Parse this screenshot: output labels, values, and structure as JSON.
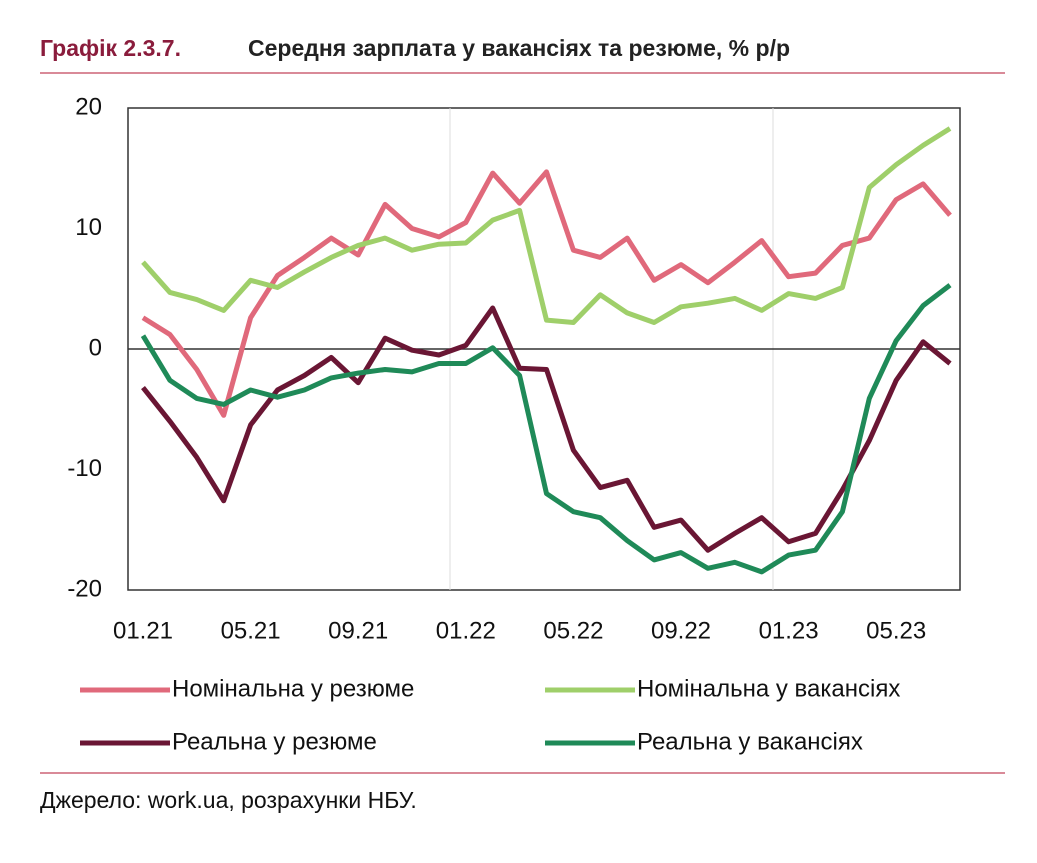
{
  "chart_data": {
    "type": "line",
    "figure_label": "Графік 2.3.7.",
    "title": "Середня зарплата у вакансіях та резюме, % р/р",
    "source": "Джерело: work.ua, розрахунки НБУ.",
    "categories": [
      "01.21",
      null,
      null,
      null,
      "05.21",
      null,
      null,
      null,
      "09.21",
      null,
      null,
      null,
      "01.22",
      null,
      null,
      null,
      "05.22",
      null,
      null,
      null,
      "09.22",
      null,
      null,
      null,
      "01.23",
      null,
      null,
      null,
      "05.23",
      null,
      null
    ],
    "series": [
      {
        "name": "Номінальна у резюме",
        "color": "#e0697b",
        "values": [
          2.6,
          1.2,
          -1.7,
          -5.5,
          2.6,
          6.1,
          7.6,
          9.2,
          7.8,
          12.0,
          10.0,
          9.3,
          10.5,
          14.6,
          12.1,
          14.7,
          8.2,
          7.6,
          9.2,
          5.7,
          7.0,
          5.5,
          7.2,
          9.0,
          6.0,
          6.3,
          8.6,
          9.2,
          12.4,
          13.7,
          11.1
        ]
      },
      {
        "name": "Номінальна у вакансіях",
        "color": "#9fcf6a",
        "values": [
          7.2,
          4.7,
          4.1,
          3.2,
          5.7,
          5.1,
          6.4,
          7.6,
          8.6,
          9.2,
          8.2,
          8.7,
          8.8,
          10.7,
          11.5,
          2.4,
          2.2,
          4.5,
          3.0,
          2.2,
          3.5,
          3.8,
          4.2,
          3.2,
          4.6,
          4.2,
          5.1,
          13.4,
          15.3,
          16.9,
          18.3
        ]
      },
      {
        "name": "Реальна у резюме",
        "color": "#6a1634",
        "values": [
          -3.2,
          -6.0,
          -9.0,
          -12.6,
          -6.3,
          -3.4,
          -2.2,
          -0.7,
          -2.8,
          0.9,
          -0.1,
          -0.5,
          0.3,
          3.4,
          -1.6,
          -1.7,
          -8.4,
          -11.5,
          -10.9,
          -14.8,
          -14.2,
          -16.7,
          -15.3,
          -14.0,
          -16.0,
          -15.3,
          -11.7,
          -7.6,
          -2.6,
          0.6,
          -1.2
        ]
      },
      {
        "name": "Реальна у вакансіях",
        "color": "#1f8a58",
        "values": [
          1.1,
          -2.6,
          -4.1,
          -4.6,
          -3.4,
          -4.0,
          -3.4,
          -2.4,
          -2.0,
          -1.7,
          -1.9,
          -1.2,
          -1.2,
          0.1,
          -2.2,
          -12.0,
          -13.5,
          -14.0,
          -15.9,
          -17.5,
          -16.9,
          -18.2,
          -17.7,
          -18.5,
          -17.1,
          -16.7,
          -13.5,
          -4.1,
          0.7,
          3.6,
          5.3
        ]
      }
    ],
    "ylim": [
      -20,
      20
    ],
    "yticks": [
      -20,
      -10,
      0,
      10,
      20
    ],
    "grid": false
  }
}
